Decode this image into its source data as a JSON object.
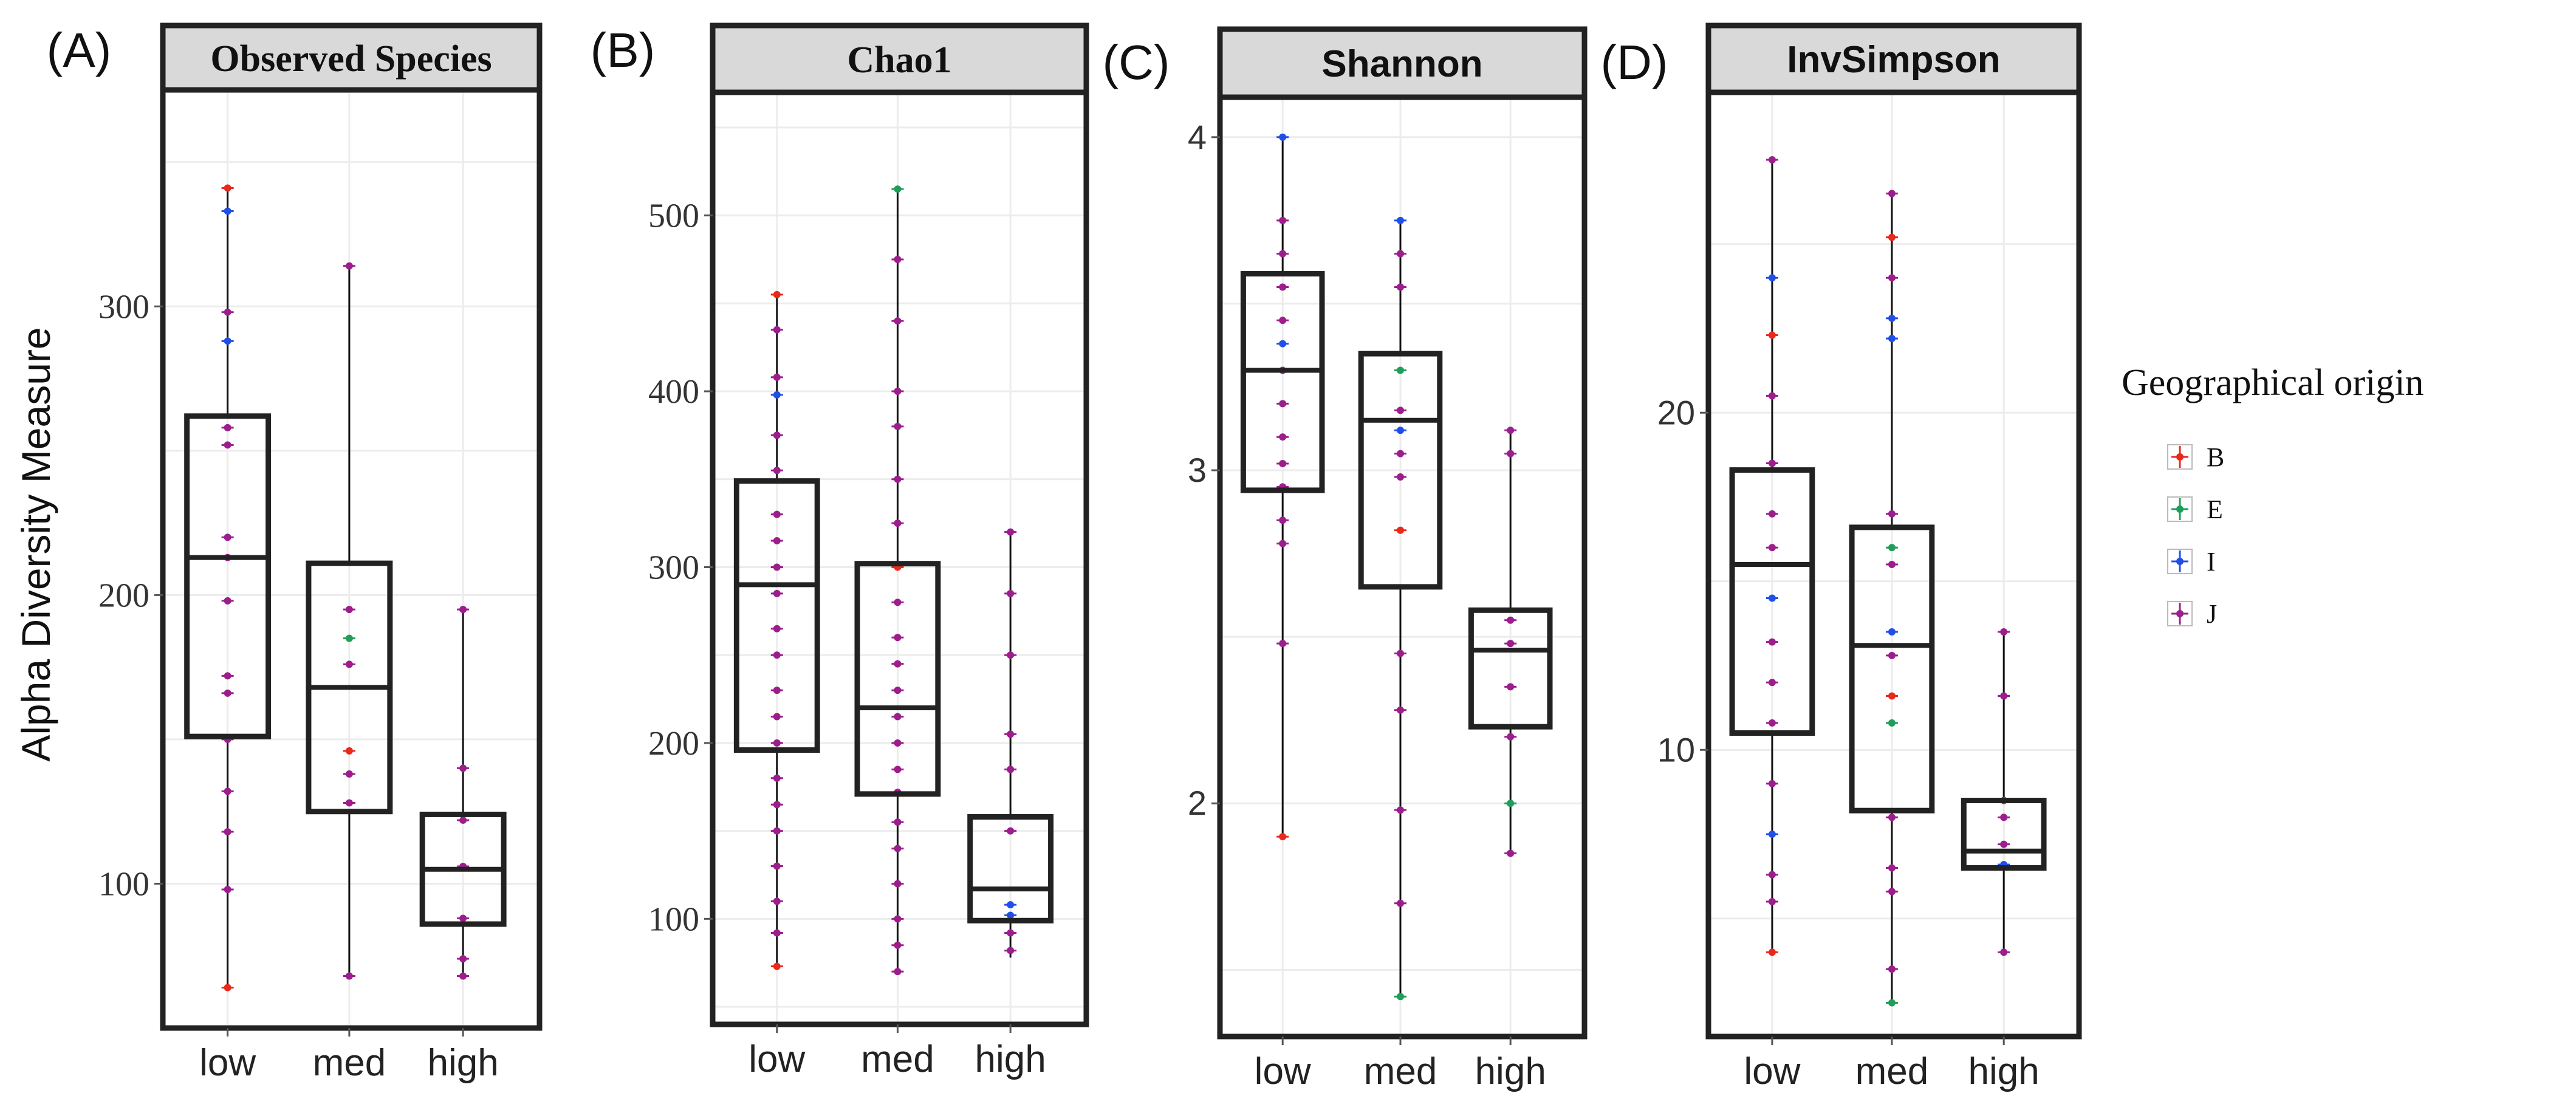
{
  "figure": {
    "ylabel": "Alpha Diversity Measure",
    "legend": {
      "title": "Geographical origin",
      "items": [
        {
          "label": "B",
          "color": "#e8291c"
        },
        {
          "label": "E",
          "color": "#1f9e5a"
        },
        {
          "label": "I",
          "color": "#1f4fe8"
        },
        {
          "label": "J",
          "color": "#9c1d8c"
        }
      ]
    }
  },
  "chart_data": [
    {
      "type": "box",
      "panel_label": "(A)",
      "title": "Observed Species",
      "categories": [
        "low",
        "med",
        "high"
      ],
      "yticks": [
        100,
        200,
        300
      ],
      "ylim": [
        50,
        375
      ],
      "boxes": [
        {
          "q1": 151,
          "median": 213,
          "q3": 262,
          "min": 64,
          "max": 341
        },
        {
          "q1": 125,
          "median": 168,
          "q3": 211,
          "min": 68,
          "max": 314
        },
        {
          "q1": 86,
          "median": 105,
          "q3": 124,
          "min": 68,
          "max": 195
        }
      ],
      "points": [
        [
          {
            "g": "B",
            "v": 341
          },
          {
            "g": "I",
            "v": 333
          },
          {
            "g": "J",
            "v": 298
          },
          {
            "g": "I",
            "v": 288
          },
          {
            "g": "J",
            "v": 258
          },
          {
            "g": "J",
            "v": 252
          },
          {
            "g": "J",
            "v": 220
          },
          {
            "g": "J",
            "v": 213
          },
          {
            "g": "J",
            "v": 198
          },
          {
            "g": "J",
            "v": 172
          },
          {
            "g": "J",
            "v": 166
          },
          {
            "g": "J",
            "v": 150
          },
          {
            "g": "J",
            "v": 132
          },
          {
            "g": "J",
            "v": 118
          },
          {
            "g": "J",
            "v": 98
          },
          {
            "g": "B",
            "v": 64
          }
        ],
        [
          {
            "g": "J",
            "v": 314
          },
          {
            "g": "J",
            "v": 195
          },
          {
            "g": "E",
            "v": 185
          },
          {
            "g": "J",
            "v": 176
          },
          {
            "g": "B",
            "v": 146
          },
          {
            "g": "J",
            "v": 138
          },
          {
            "g": "J",
            "v": 128
          },
          {
            "g": "J",
            "v": 68
          }
        ],
        [
          {
            "g": "J",
            "v": 195
          },
          {
            "g": "J",
            "v": 140
          },
          {
            "g": "J",
            "v": 122
          },
          {
            "g": "J",
            "v": 106
          },
          {
            "g": "J",
            "v": 88
          },
          {
            "g": "J",
            "v": 74
          },
          {
            "g": "J",
            "v": 68
          }
        ]
      ]
    },
    {
      "type": "box",
      "panel_label": "(B)",
      "title": "Chao1",
      "categories": [
        "low",
        "med",
        "high"
      ],
      "yticks": [
        100,
        200,
        300,
        400,
        500
      ],
      "ylim": [
        40,
        570
      ],
      "boxes": [
        {
          "q1": 196,
          "median": 290,
          "q3": 349,
          "min": 73,
          "max": 455
        },
        {
          "q1": 171,
          "median": 220,
          "q3": 302,
          "min": 70,
          "max": 515
        },
        {
          "q1": 99,
          "median": 117,
          "q3": 158,
          "min": 78,
          "max": 320
        }
      ],
      "points": [
        [
          {
            "g": "B",
            "v": 455
          },
          {
            "g": "J",
            "v": 435
          },
          {
            "g": "J",
            "v": 408
          },
          {
            "g": "I",
            "v": 398
          },
          {
            "g": "J",
            "v": 375
          },
          {
            "g": "J",
            "v": 355
          },
          {
            "g": "J",
            "v": 330
          },
          {
            "g": "J",
            "v": 315
          },
          {
            "g": "J",
            "v": 300
          },
          {
            "g": "J",
            "v": 285
          },
          {
            "g": "J",
            "v": 265
          },
          {
            "g": "J",
            "v": 250
          },
          {
            "g": "J",
            "v": 230
          },
          {
            "g": "J",
            "v": 215
          },
          {
            "g": "J",
            "v": 200
          },
          {
            "g": "J",
            "v": 180
          },
          {
            "g": "J",
            "v": 165
          },
          {
            "g": "J",
            "v": 150
          },
          {
            "g": "J",
            "v": 130
          },
          {
            "g": "J",
            "v": 110
          },
          {
            "g": "J",
            "v": 92
          },
          {
            "g": "B",
            "v": 73
          }
        ],
        [
          {
            "g": "E",
            "v": 515
          },
          {
            "g": "J",
            "v": 475
          },
          {
            "g": "J",
            "v": 440
          },
          {
            "g": "J",
            "v": 400
          },
          {
            "g": "J",
            "v": 380
          },
          {
            "g": "J",
            "v": 350
          },
          {
            "g": "J",
            "v": 325
          },
          {
            "g": "B",
            "v": 300
          },
          {
            "g": "J",
            "v": 280
          },
          {
            "g": "J",
            "v": 260
          },
          {
            "g": "J",
            "v": 245
          },
          {
            "g": "J",
            "v": 230
          },
          {
            "g": "J",
            "v": 215
          },
          {
            "g": "J",
            "v": 200
          },
          {
            "g": "J",
            "v": 185
          },
          {
            "g": "J",
            "v": 172
          },
          {
            "g": "J",
            "v": 155
          },
          {
            "g": "J",
            "v": 140
          },
          {
            "g": "J",
            "v": 120
          },
          {
            "g": "J",
            "v": 100
          },
          {
            "g": "J",
            "v": 85
          },
          {
            "g": "J",
            "v": 70
          }
        ],
        [
          {
            "g": "J",
            "v": 320
          },
          {
            "g": "J",
            "v": 285
          },
          {
            "g": "J",
            "v": 250
          },
          {
            "g": "J",
            "v": 205
          },
          {
            "g": "J",
            "v": 185
          },
          {
            "g": "J",
            "v": 150
          },
          {
            "g": "I",
            "v": 108
          },
          {
            "g": "I",
            "v": 102
          },
          {
            "g": "J",
            "v": 92
          },
          {
            "g": "J",
            "v": 82
          }
        ]
      ]
    },
    {
      "type": "box",
      "panel_label": "(C)",
      "title": "Shannon",
      "categories": [
        "low",
        "med",
        "high"
      ],
      "yticks": [
        2,
        3,
        4
      ],
      "ylim": [
        1.3,
        4.12
      ],
      "boxes": [
        {
          "q1": 2.94,
          "median": 3.3,
          "q3": 3.59,
          "min": 1.9,
          "max": 4.0
        },
        {
          "q1": 2.65,
          "median": 3.15,
          "q3": 3.35,
          "min": 1.42,
          "max": 3.75
        },
        {
          "q1": 2.23,
          "median": 2.46,
          "q3": 2.58,
          "min": 1.85,
          "max": 3.12
        }
      ],
      "points": [
        [
          {
            "g": "I",
            "v": 4.0
          },
          {
            "g": "J",
            "v": 3.75
          },
          {
            "g": "J",
            "v": 3.65
          },
          {
            "g": "J",
            "v": 3.55
          },
          {
            "g": "J",
            "v": 3.45
          },
          {
            "g": "I",
            "v": 3.38
          },
          {
            "g": "J",
            "v": 3.3
          },
          {
            "g": "J",
            "v": 3.2
          },
          {
            "g": "J",
            "v": 3.1
          },
          {
            "g": "J",
            "v": 3.02
          },
          {
            "g": "J",
            "v": 2.95
          },
          {
            "g": "J",
            "v": 2.85
          },
          {
            "g": "J",
            "v": 2.78
          },
          {
            "g": "J",
            "v": 2.48
          },
          {
            "g": "B",
            "v": 1.9
          }
        ],
        [
          {
            "g": "I",
            "v": 3.75
          },
          {
            "g": "J",
            "v": 3.65
          },
          {
            "g": "J",
            "v": 3.55
          },
          {
            "g": "E",
            "v": 3.3
          },
          {
            "g": "J",
            "v": 3.18
          },
          {
            "g": "I",
            "v": 3.12
          },
          {
            "g": "J",
            "v": 3.05
          },
          {
            "g": "J",
            "v": 2.98
          },
          {
            "g": "B",
            "v": 2.82
          },
          {
            "g": "J",
            "v": 2.45
          },
          {
            "g": "J",
            "v": 2.28
          },
          {
            "g": "J",
            "v": 1.98
          },
          {
            "g": "J",
            "v": 1.7
          },
          {
            "g": "E",
            "v": 1.42
          }
        ],
        [
          {
            "g": "J",
            "v": 3.12
          },
          {
            "g": "J",
            "v": 3.05
          },
          {
            "g": "J",
            "v": 2.55
          },
          {
            "g": "J",
            "v": 2.48
          },
          {
            "g": "J",
            "v": 2.35
          },
          {
            "g": "J",
            "v": 2.2
          },
          {
            "g": "E",
            "v": 2.0
          },
          {
            "g": "J",
            "v": 1.85
          }
        ]
      ]
    },
    {
      "type": "box",
      "panel_label": "(D)",
      "title": "InvSimpson",
      "categories": [
        "low",
        "med",
        "high"
      ],
      "yticks": [
        10,
        20
      ],
      "ylim": [
        1.5,
        29.5
      ],
      "boxes": [
        {
          "q1": 10.5,
          "median": 15.5,
          "q3": 18.3,
          "min": 4.0,
          "max": 27.5
        },
        {
          "q1": 8.2,
          "median": 13.1,
          "q3": 16.6,
          "min": 2.5,
          "max": 26.5
        },
        {
          "q1": 6.5,
          "median": 7.0,
          "q3": 8.5,
          "min": 4.0,
          "max": 13.5
        }
      ],
      "points": [
        [
          {
            "g": "J",
            "v": 27.5
          },
          {
            "g": "I",
            "v": 24.0
          },
          {
            "g": "B",
            "v": 22.3
          },
          {
            "g": "J",
            "v": 20.5
          },
          {
            "g": "J",
            "v": 18.5
          },
          {
            "g": "J",
            "v": 17.0
          },
          {
            "g": "J",
            "v": 16.0
          },
          {
            "g": "I",
            "v": 14.5
          },
          {
            "g": "J",
            "v": 13.2
          },
          {
            "g": "J",
            "v": 12.0
          },
          {
            "g": "J",
            "v": 10.8
          },
          {
            "g": "J",
            "v": 9.0
          },
          {
            "g": "I",
            "v": 7.5
          },
          {
            "g": "J",
            "v": 6.3
          },
          {
            "g": "J",
            "v": 5.5
          },
          {
            "g": "B",
            "v": 4.0
          }
        ],
        [
          {
            "g": "J",
            "v": 26.5
          },
          {
            "g": "B",
            "v": 25.2
          },
          {
            "g": "J",
            "v": 24.0
          },
          {
            "g": "I",
            "v": 22.8
          },
          {
            "g": "I",
            "v": 22.2
          },
          {
            "g": "J",
            "v": 17.0
          },
          {
            "g": "E",
            "v": 16.0
          },
          {
            "g": "J",
            "v": 15.5
          },
          {
            "g": "I",
            "v": 13.5
          },
          {
            "g": "J",
            "v": 12.8
          },
          {
            "g": "B",
            "v": 11.6
          },
          {
            "g": "E",
            "v": 10.8
          },
          {
            "g": "J",
            "v": 8.0
          },
          {
            "g": "J",
            "v": 6.5
          },
          {
            "g": "J",
            "v": 5.8
          },
          {
            "g": "J",
            "v": 3.5
          },
          {
            "g": "E",
            "v": 2.5
          }
        ],
        [
          {
            "g": "J",
            "v": 13.5
          },
          {
            "g": "J",
            "v": 11.6
          },
          {
            "g": "J",
            "v": 8.5
          },
          {
            "g": "J",
            "v": 8.0
          },
          {
            "g": "J",
            "v": 7.2
          },
          {
            "g": "I",
            "v": 6.6
          },
          {
            "g": "J",
            "v": 4.0
          }
        ]
      ]
    }
  ]
}
